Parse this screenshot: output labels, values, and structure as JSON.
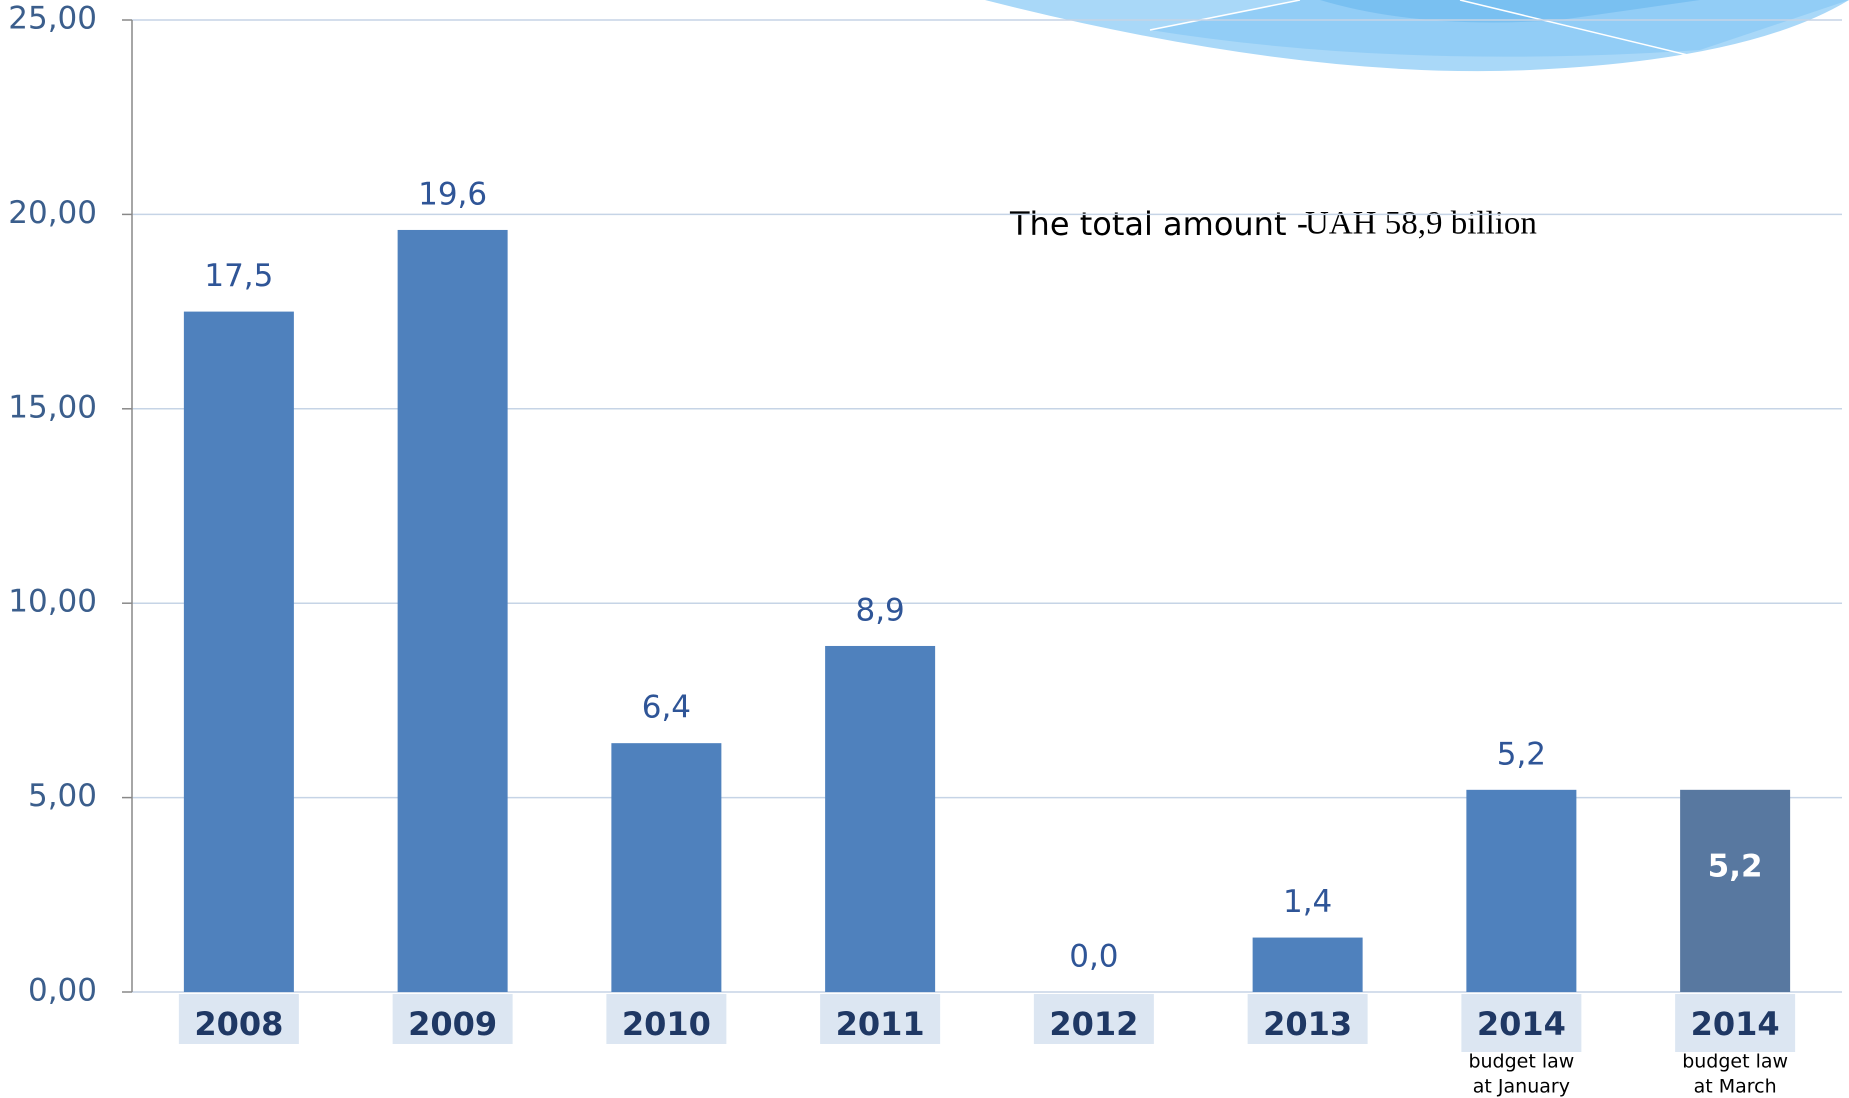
{
  "chart_data": {
    "type": "bar",
    "categories": [
      "2008",
      "2009",
      "2010",
      "2011",
      "2012",
      "2013",
      "2014",
      "2014"
    ],
    "category_sublabels": [
      null,
      null,
      null,
      null,
      null,
      null,
      [
        "budget law",
        "at January"
      ],
      [
        "budget law",
        "at March"
      ]
    ],
    "values": [
      17.5,
      19.6,
      6.4,
      8.9,
      0.0,
      1.4,
      5.2,
      5.2
    ],
    "value_labels": [
      "17,5",
      "19,6",
      "6,4",
      "8,9",
      "0,0",
      "1,4",
      "5,2",
      "5,2"
    ],
    "colors": [
      "#4f81bd",
      "#4f81bd",
      "#4f81bd",
      "#4f81bd",
      "#4f81bd",
      "#4f81bd",
      "#4f81bd",
      "#5878a0"
    ],
    "value_label_inside": [
      false,
      false,
      false,
      false,
      false,
      false,
      false,
      true
    ],
    "annotation": [
      "The total amount -",
      "UAH 58,9 billion"
    ],
    "ylim": [
      0,
      25
    ],
    "yticks": [
      {
        "value": 0,
        "label": "0,00"
      },
      {
        "value": 5,
        "label": "5,00"
      },
      {
        "value": 10,
        "label": "10,00"
      },
      {
        "value": 15,
        "label": "15,00"
      },
      {
        "value": 20,
        "label": "20,00"
      },
      {
        "value": 25,
        "label": "25,00"
      }
    ],
    "grid": true
  }
}
